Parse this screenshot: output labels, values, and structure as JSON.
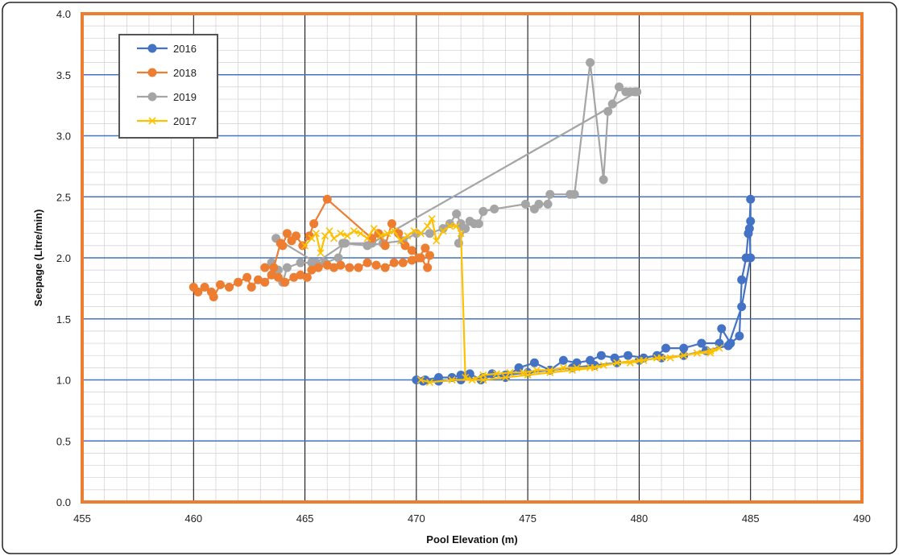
{
  "chart_data": {
    "type": "scatter",
    "title": "",
    "xlabel": "Pool Elevation (m)",
    "ylabel": "Seepage (Litre/min)",
    "xlim": [
      455,
      490
    ],
    "ylim": [
      0.0,
      4.0
    ],
    "x_ticks": [
      "455",
      "460",
      "465",
      "470",
      "475",
      "480",
      "485",
      "490"
    ],
    "y_ticks": [
      "0.0",
      "0.5",
      "1.0",
      "1.5",
      "2.0",
      "2.5",
      "3.0",
      "3.5",
      "4.0"
    ],
    "grid": true,
    "legend_position": "top-left",
    "series": [
      {
        "name": "2016",
        "color": "#4472C4",
        "marker": "circle",
        "points": [
          [
            470.0,
            1.0
          ],
          [
            470.4,
            1.0
          ],
          [
            471.0,
            1.02
          ],
          [
            471.6,
            1.02
          ],
          [
            472.0,
            1.04
          ],
          [
            472.4,
            1.05
          ],
          [
            472.9,
            1.0
          ],
          [
            473.4,
            1.05
          ],
          [
            474.0,
            1.02
          ],
          [
            474.6,
            1.1
          ],
          [
            475.3,
            1.14
          ],
          [
            476.0,
            1.08
          ],
          [
            476.6,
            1.16
          ],
          [
            477.2,
            1.14
          ],
          [
            477.8,
            1.16
          ],
          [
            478.3,
            1.2
          ],
          [
            478.9,
            1.18
          ],
          [
            479.5,
            1.2
          ],
          [
            480.2,
            1.18
          ],
          [
            480.8,
            1.2
          ],
          [
            481.2,
            1.26
          ],
          [
            482.0,
            1.26
          ],
          [
            482.8,
            1.3
          ],
          [
            483.6,
            1.3
          ],
          [
            483.7,
            1.42
          ],
          [
            484.1,
            1.3
          ],
          [
            484.5,
            1.36
          ],
          [
            484.6,
            1.82
          ],
          [
            484.8,
            2.0
          ],
          [
            484.9,
            2.2
          ],
          [
            485.0,
            2.3
          ],
          [
            485.0,
            2.48
          ],
          [
            484.95,
            2.24
          ],
          [
            485.0,
            2.0
          ],
          [
            484.6,
            1.6
          ],
          [
            484.0,
            1.28
          ],
          [
            483.0,
            1.24
          ],
          [
            482.0,
            1.2
          ],
          [
            481.0,
            1.18
          ],
          [
            480.0,
            1.16
          ],
          [
            479.0,
            1.14
          ],
          [
            478.0,
            1.12
          ],
          [
            477.0,
            1.1
          ],
          [
            476.0,
            1.08
          ],
          [
            475.0,
            1.06
          ],
          [
            474.0,
            1.04
          ],
          [
            473.0,
            1.02
          ],
          [
            472.0,
            1.0
          ],
          [
            471.0,
            0.99
          ],
          [
            470.3,
            0.99
          ]
        ]
      },
      {
        "name": "2018",
        "color": "#ED7D31",
        "marker": "circle",
        "points": [
          [
            460.0,
            1.76
          ],
          [
            460.2,
            1.72
          ],
          [
            460.5,
            1.76
          ],
          [
            460.8,
            1.72
          ],
          [
            460.9,
            1.68
          ],
          [
            461.2,
            1.78
          ],
          [
            461.6,
            1.76
          ],
          [
            462.0,
            1.8
          ],
          [
            462.4,
            1.84
          ],
          [
            462.6,
            1.76
          ],
          [
            462.9,
            1.82
          ],
          [
            463.2,
            1.8
          ],
          [
            463.5,
            1.86
          ],
          [
            463.8,
            1.84
          ],
          [
            464.1,
            1.8
          ],
          [
            464.5,
            1.84
          ],
          [
            464.8,
            1.86
          ],
          [
            465.1,
            1.84
          ],
          [
            465.3,
            1.9
          ],
          [
            465.6,
            1.92
          ],
          [
            466.0,
            1.94
          ],
          [
            466.3,
            1.92
          ],
          [
            466.6,
            1.94
          ],
          [
            467.0,
            1.92
          ],
          [
            467.4,
            1.92
          ],
          [
            467.8,
            1.96
          ],
          [
            468.2,
            1.94
          ],
          [
            468.6,
            1.92
          ],
          [
            469.0,
            1.96
          ],
          [
            469.4,
            1.96
          ],
          [
            469.8,
            1.98
          ],
          [
            470.2,
            2.0
          ],
          [
            470.5,
            1.92
          ],
          [
            470.6,
            2.02
          ],
          [
            470.4,
            2.08
          ],
          [
            470.1,
            2.0
          ],
          [
            469.8,
            2.06
          ],
          [
            469.5,
            2.1
          ],
          [
            469.2,
            2.2
          ],
          [
            468.9,
            2.28
          ],
          [
            468.6,
            2.1
          ],
          [
            468.3,
            2.2
          ],
          [
            468.0,
            2.16
          ],
          [
            466.0,
            2.48
          ],
          [
            465.4,
            2.28
          ],
          [
            465.2,
            2.18
          ],
          [
            464.9,
            2.1
          ],
          [
            464.6,
            2.18
          ],
          [
            464.4,
            2.14
          ],
          [
            464.2,
            2.2
          ],
          [
            464.0,
            2.1
          ],
          [
            463.9,
            2.12
          ],
          [
            463.6,
            1.92
          ],
          [
            463.2,
            1.92
          ]
        ]
      },
      {
        "name": "2019",
        "color": "#A5A5A5",
        "marker": "circle",
        "points": [
          [
            463.5,
            1.96
          ],
          [
            463.8,
            1.9
          ],
          [
            464.0,
            1.8
          ],
          [
            464.2,
            1.92
          ],
          [
            464.8,
            1.96
          ],
          [
            465.3,
            1.96
          ],
          [
            465.9,
            1.96
          ],
          [
            466.5,
            2.0
          ],
          [
            466.7,
            2.12
          ],
          [
            467.8,
            2.1
          ],
          [
            468.5,
            2.12
          ],
          [
            469.4,
            2.14
          ],
          [
            470.0,
            2.2
          ],
          [
            470.6,
            2.2
          ],
          [
            471.2,
            2.24
          ],
          [
            471.5,
            2.28
          ],
          [
            471.8,
            2.36
          ],
          [
            472.0,
            2.28
          ],
          [
            471.9,
            2.12
          ],
          [
            472.2,
            2.24
          ],
          [
            472.4,
            2.3
          ],
          [
            472.6,
            2.28
          ],
          [
            472.8,
            2.28
          ],
          [
            473.0,
            2.38
          ],
          [
            473.5,
            2.4
          ],
          [
            474.9,
            2.44
          ],
          [
            475.3,
            2.4
          ],
          [
            475.5,
            2.44
          ],
          [
            475.9,
            2.44
          ],
          [
            476.0,
            2.52
          ],
          [
            476.9,
            2.52
          ],
          [
            477.1,
            2.52
          ],
          [
            477.8,
            3.6
          ],
          [
            478.4,
            2.64
          ],
          [
            478.6,
            3.2
          ],
          [
            478.8,
            3.26
          ],
          [
            479.1,
            3.4
          ],
          [
            479.4,
            3.36
          ],
          [
            479.6,
            3.36
          ],
          [
            479.8,
            3.36
          ],
          [
            479.9,
            3.36
          ],
          [
            468.0,
            2.12
          ],
          [
            466.8,
            2.12
          ],
          [
            465.5,
            1.96
          ],
          [
            463.7,
            2.16
          ]
        ]
      },
      {
        "name": "2017",
        "color": "#FFC000",
        "marker": "x",
        "points": [
          [
            465.0,
            2.1
          ],
          [
            465.3,
            2.16
          ],
          [
            465.5,
            2.2
          ],
          [
            465.7,
            2.04
          ],
          [
            465.9,
            2.18
          ],
          [
            466.1,
            2.22
          ],
          [
            466.3,
            2.16
          ],
          [
            466.6,
            2.2
          ],
          [
            466.9,
            2.18
          ],
          [
            467.2,
            2.22
          ],
          [
            467.5,
            2.2
          ],
          [
            467.8,
            2.16
          ],
          [
            468.1,
            2.24
          ],
          [
            468.4,
            2.18
          ],
          [
            468.7,
            2.2
          ],
          [
            469.0,
            2.22
          ],
          [
            469.3,
            2.14
          ],
          [
            469.6,
            2.18
          ],
          [
            469.9,
            2.22
          ],
          [
            470.2,
            2.2
          ],
          [
            470.5,
            2.26
          ],
          [
            470.7,
            2.32
          ],
          [
            470.9,
            2.14
          ],
          [
            471.2,
            2.22
          ],
          [
            471.5,
            2.26
          ],
          [
            471.8,
            2.26
          ],
          [
            472.0,
            2.2
          ],
          [
            472.2,
            1.02
          ],
          [
            472.5,
            1.0
          ],
          [
            473.0,
            1.04
          ],
          [
            473.6,
            1.05
          ],
          [
            474.2,
            1.06
          ],
          [
            474.8,
            1.06
          ],
          [
            475.4,
            1.08
          ],
          [
            476.0,
            1.08
          ],
          [
            476.6,
            1.1
          ],
          [
            477.2,
            1.1
          ],
          [
            477.8,
            1.1
          ],
          [
            478.4,
            1.12
          ],
          [
            479.0,
            1.14
          ],
          [
            479.6,
            1.14
          ],
          [
            480.2,
            1.16
          ],
          [
            480.8,
            1.18
          ],
          [
            481.4,
            1.18
          ],
          [
            482.0,
            1.2
          ],
          [
            482.6,
            1.22
          ],
          [
            483.2,
            1.22
          ],
          [
            483.6,
            1.26
          ],
          [
            483.2,
            1.24
          ],
          [
            482.6,
            1.22
          ],
          [
            482.0,
            1.2
          ],
          [
            481.0,
            1.18
          ],
          [
            480.0,
            1.16
          ],
          [
            479.0,
            1.14
          ],
          [
            478.0,
            1.1
          ],
          [
            477.0,
            1.08
          ],
          [
            476.0,
            1.06
          ],
          [
            475.0,
            1.04
          ],
          [
            474.0,
            1.02
          ],
          [
            473.0,
            1.0
          ],
          [
            471.6,
            1.0
          ],
          [
            470.6,
            0.98
          ],
          [
            470.2,
            1.0
          ]
        ]
      }
    ]
  }
}
